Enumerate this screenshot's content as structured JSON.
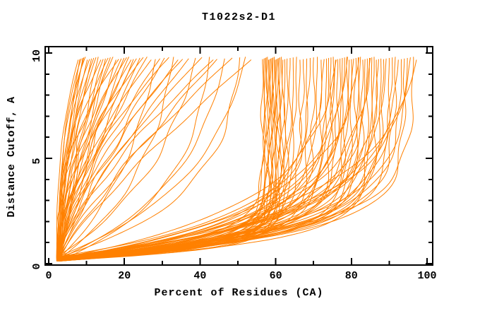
{
  "chart_data": {
    "type": "line",
    "title": "T1022s2-D1",
    "xlabel": "Percent of Residues (CA)",
    "ylabel": "Distance Cutoff, A",
    "xlim": [
      0,
      100
    ],
    "ylim": [
      0,
      10
    ],
    "x_major_ticks": [
      0,
      20,
      40,
      60,
      80,
      100
    ],
    "x_minor_ticks": [
      10,
      30,
      50,
      70,
      90
    ],
    "y_major_ticks": [
      0,
      5,
      10
    ],
    "y_minor_ticks": [
      1,
      2,
      3,
      4,
      6,
      7,
      8,
      9
    ],
    "grid": false,
    "legend_position": "none",
    "frame": "box-with-mirrored-inward-ticks",
    "line_color": "#ff8000",
    "axis_color": "#000000",
    "background_color": "#ffffff",
    "curve_model": {
      "description": "Each unlabeled prediction curve rises monotonically from a common origin near (2.5% residues, 0.2 A) to a top cutoff of about 9.8 A. Each entry in series is [x_top_percent, shape]; shape > 0 means exponential saturation x(y)=x0+(xt-x0)*(1-exp(-shape*(y-y0)))/(1-exp(-shape*(yt-y0))) (curve sweeps right along the bottom then turns vertical); shape < 0 means power law x(y)=x0+(xt-x0)*t^|shape| with t=(y-y0)/(yt-y0) (steep at bottom, leaning right near top).",
      "origin": {
        "x": 2.5,
        "y": 0.2
      },
      "y_top": 9.8
    },
    "series": [
      [
        7.8,
        -2.6
      ],
      [
        8.2,
        -1.8
      ],
      [
        8.6,
        -3.2
      ],
      [
        9,
        -1.5
      ],
      [
        9.3,
        -2.2
      ],
      [
        9.7,
        -2.9
      ],
      [
        10.2,
        -1.6
      ],
      [
        10.8,
        -2.4
      ],
      [
        11.3,
        -1.3
      ],
      [
        11.9,
        -2
      ],
      [
        12.5,
        -1.8
      ],
      [
        13.1,
        -1.2
      ],
      [
        13.8,
        -2.5
      ],
      [
        14.4,
        -1.5
      ],
      [
        15,
        -1.05
      ],
      [
        15.7,
        -2.1
      ],
      [
        16.3,
        -1.35
      ],
      [
        17,
        -1.7
      ],
      [
        17.8,
        -1.1
      ],
      [
        18.5,
        -2.3
      ],
      [
        19.2,
        -1.45
      ],
      [
        19.9,
        -1.2
      ],
      [
        20.6,
        -1.9
      ],
      [
        21.2,
        -1.3
      ],
      [
        21.8,
        -1.6
      ],
      [
        22.4,
        -1.15
      ],
      [
        23.2,
        -1.5
      ],
      [
        24.1,
        -1.1
      ],
      [
        25,
        -1.9
      ],
      [
        26,
        -1.25
      ],
      [
        27.1,
        -1.6
      ],
      [
        28.2,
        0.18
      ],
      [
        29.4,
        -1.4
      ],
      [
        30.6,
        -1.15
      ],
      [
        31.8,
        -1.7
      ],
      [
        33,
        0.22
      ],
      [
        34.2,
        -1.3
      ],
      [
        35.4,
        -1.5
      ],
      [
        37,
        -1.2
      ],
      [
        38.8,
        0.2
      ],
      [
        40.5,
        -1.35
      ],
      [
        42.5,
        0.3
      ],
      [
        43.5,
        -1.4
      ],
      [
        44.5,
        -1.15
      ],
      [
        46.5,
        0.25
      ],
      [
        48.5,
        -1.25
      ],
      [
        50.5,
        0.35
      ],
      [
        52,
        0.25
      ],
      [
        53.5,
        -1.2
      ],
      [
        56.5,
        1.4
      ],
      [
        56.9,
        1.8
      ],
      [
        57.2,
        1.1
      ],
      [
        57.5,
        2.2
      ],
      [
        57.8,
        1.6
      ],
      [
        58.1,
        1.3
      ],
      [
        58.4,
        2
      ],
      [
        58.7,
        1.5
      ],
      [
        59,
        1.8
      ],
      [
        59.3,
        1.2
      ],
      [
        59.6,
        2.4
      ],
      [
        59.9,
        1.7
      ],
      [
        60.2,
        1.4
      ],
      [
        60.5,
        2
      ],
      [
        60.8,
        1.6
      ],
      [
        61.1,
        1.3
      ],
      [
        61.5,
        1.9
      ],
      [
        61.9,
        1.5
      ],
      [
        62.4,
        1.1
      ],
      [
        63,
        1.7
      ],
      [
        63.8,
        0.9
      ],
      [
        64.6,
        1.3
      ],
      [
        65.5,
        0.7
      ],
      [
        66.4,
        1.1
      ],
      [
        67.3,
        0.8
      ],
      [
        68.2,
        1.4
      ],
      [
        69.1,
        0.6
      ],
      [
        70,
        1
      ],
      [
        71,
        0.75
      ],
      [
        72,
        1.2
      ],
      [
        72.8,
        0.5
      ],
      [
        73.4,
        0.9
      ],
      [
        74,
        0.65
      ],
      [
        74.6,
        1.1
      ],
      [
        75.2,
        0.8
      ],
      [
        75.8,
        0.55
      ],
      [
        76.4,
        1
      ],
      [
        77,
        0.7
      ],
      [
        77.6,
        1.3
      ],
      [
        78.2,
        0.6
      ],
      [
        78.8,
        0.9
      ],
      [
        79.4,
        0.75
      ],
      [
        80,
        1.15
      ],
      [
        80.6,
        0.5
      ],
      [
        81.2,
        0.85
      ],
      [
        81.8,
        1.05
      ],
      [
        82.4,
        0.65
      ],
      [
        83,
        0.95
      ],
      [
        83.6,
        0.7
      ],
      [
        84.2,
        1.2
      ],
      [
        84.8,
        0.55
      ],
      [
        85.4,
        0.9
      ],
      [
        86,
        0.75
      ],
      [
        86.6,
        1.05
      ],
      [
        87.2,
        0.6
      ],
      [
        87.8,
        0.85
      ],
      [
        85,
        0.45
      ],
      [
        82,
        0.4
      ],
      [
        79,
        0.42
      ],
      [
        76,
        0.38
      ],
      [
        88.5,
        0.8
      ],
      [
        89.2,
        0.55
      ],
      [
        90,
        0.95
      ],
      [
        90.8,
        0.65
      ],
      [
        91.6,
        0.8
      ],
      [
        92.4,
        0.5
      ],
      [
        93.2,
        0.7
      ],
      [
        94,
        0.9
      ],
      [
        94.8,
        0.6
      ],
      [
        95.6,
        0.45
      ],
      [
        96.4,
        0.75
      ],
      [
        97.2,
        0.35
      ]
    ]
  }
}
